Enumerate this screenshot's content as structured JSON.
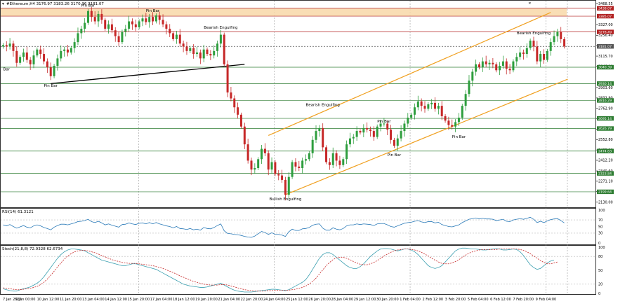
{
  "window": {
    "main_title": "#Ethereum,H4  3176.97 3183.26 3170.36 3181.07",
    "rsi_title": "RSI(14) 61.3121",
    "stoch_title": "Stoch(21,8,8) 72.9328 62.6734",
    "close_glyph": "×"
  },
  "chart_data": [
    {
      "type": "candlestick",
      "symbol": "#Ethereum",
      "timeframe": "H4",
      "ohlc_header": {
        "open": 3176.97,
        "high": 3183.26,
        "low": 3170.36,
        "close": 3181.07
      },
      "ylim": [
        2100,
        3480
      ],
      "y_ticks": [
        "3468.55",
        "3327.00",
        "3256.40",
        "3185.80",
        "3115.70",
        "3046.10",
        "2903.60",
        "2832.90",
        "2762.90",
        "2692.00",
        "2621.80",
        "2552.80",
        "2482.10",
        "2412.20",
        "2340.60",
        "2271.10",
        "2200.80",
        "2130.00"
      ],
      "x_ticks": [
        "7 Jan 2022",
        "9 Jan 00:00",
        "10 Jan 12:00",
        "11 Jan 20:00",
        "13 Jan 04:00",
        "14 Jan 12:00",
        "15 Jan 20:00",
        "17 Jan 04:00",
        "18 Jan 12:00",
        "19 Jan 20:00",
        "21 Jan 04:00",
        "22 Jan 20:00",
        "24 Jan 04:00",
        "25 Jan 12:00",
        "26 Jan 20:00",
        "28 Jan 04:00",
        "29 Jan 12:00",
        "30 Jan 20:00",
        "1 Feb 04:00",
        "2 Feb 12:00",
        "3 Feb 20:00",
        "5 Feb 04:00",
        "6 Feb 12:00",
        "7 Feb 20:00",
        "9 Feb 04:00"
      ],
      "levels": [
        {
          "value": 3438.07,
          "label": "3438.07",
          "color": "#b22222"
        },
        {
          "value": 3385.07,
          "label": "3385.07",
          "color": "#b22222"
        },
        {
          "value": 3278.49,
          "label": "3278.49",
          "color": "#b22222"
        },
        {
          "value": 3181.07,
          "label": "3181.07",
          "color": "#555555"
        },
        {
          "value": 3040.39,
          "label": "3040.39",
          "color": "#2e7d32"
        },
        {
          "value": 2930.14,
          "label": "2930.14",
          "color": "#2e7d32"
        },
        {
          "value": 2816.29,
          "label": "2816.29",
          "color": "#2e7d32"
        },
        {
          "value": 2695.14,
          "label": "2695.14",
          "color": "#2e7d32"
        },
        {
          "value": 2626.79,
          "label": "2626.79",
          "color": "#2e7d32"
        },
        {
          "value": 2474.63,
          "label": "2474.63",
          "color": "#2e7d32"
        },
        {
          "value": 2323.84,
          "label": "2323.84",
          "color": "#2e7d32"
        },
        {
          "value": 2199.64,
          "label": "2199.64",
          "color": "#2e7d32"
        }
      ],
      "resistance_zone": [
        3385,
        3438
      ],
      "trendlines": [
        {
          "kind": "support",
          "color": "#000000",
          "from": {
            "bar": 14,
            "price": 2930
          },
          "to": {
            "bar": 71,
            "price": 3060
          }
        },
        {
          "kind": "channel-upper",
          "color": "#f0a020",
          "from": {
            "bar": 78,
            "price": 2580
          },
          "to": {
            "bar": 161,
            "price": 3410
          }
        },
        {
          "kind": "channel-lower",
          "color": "#f0a020",
          "from": {
            "bar": 83,
            "price": 2180
          },
          "to": {
            "bar": 166,
            "price": 2960
          }
        }
      ],
      "annotations": [
        {
          "text": "Pin Bar",
          "bar": 25,
          "price": 3450
        },
        {
          "text": "Pin Bar",
          "bar": 44,
          "price": 3415
        },
        {
          "text": "Bearish Engulfing",
          "bar": 64,
          "price": 3300
        },
        {
          "text": "Bar",
          "bar": 1,
          "price": 3020
        },
        {
          "text": "Pin Bar",
          "bar": 14,
          "price": 2908
        },
        {
          "text": "Bearish Engulfing",
          "bar": 94,
          "price": 2778
        },
        {
          "text": "Pin Bar",
          "bar": 112,
          "price": 2666
        },
        {
          "text": "Pin Bar",
          "bar": 115,
          "price": 2440
        },
        {
          "text": "Pin Bar",
          "bar": 134,
          "price": 2564
        },
        {
          "text": "Bearish Engulfing",
          "bar": 156,
          "price": 3262
        },
        {
          "text": "Bullish Engulfing",
          "bar": 83,
          "price": 2143
        }
      ],
      "closes": [
        3190,
        3180,
        3200,
        3150,
        3070,
        3110,
        3140,
        3090,
        3060,
        3120,
        3160,
        3130,
        3080,
        3040,
        2980,
        3050,
        3100,
        3150,
        3160,
        3140,
        3170,
        3210,
        3270,
        3300,
        3340,
        3420,
        3380,
        3350,
        3400,
        3360,
        3300,
        3330,
        3290,
        3250,
        3210,
        3280,
        3300,
        3350,
        3330,
        3310,
        3350,
        3370,
        3345,
        3380,
        3350,
        3390,
        3360,
        3330,
        3300,
        3270,
        3230,
        3260,
        3200,
        3180,
        3150,
        3170,
        3130,
        3140,
        3100,
        3160,
        3130,
        3120,
        3150,
        3200,
        3260,
        3060,
        2870,
        2830,
        2770,
        2720,
        2640,
        2520,
        2410,
        2350,
        2360,
        2420,
        2490,
        2460,
        2350,
        2400,
        2320,
        2310,
        2280,
        2180,
        2300,
        2400,
        2370,
        2360,
        2410,
        2420,
        2460,
        2550,
        2610,
        2630,
        2500,
        2400,
        2380,
        2460,
        2410,
        2380,
        2420,
        2520,
        2560,
        2570,
        2610,
        2600,
        2630,
        2620,
        2610,
        2570,
        2640,
        2660,
        2660,
        2620,
        2550,
        2510,
        2560,
        2610,
        2660,
        2700,
        2720,
        2770,
        2810,
        2780,
        2760,
        2790,
        2800,
        2760,
        2780,
        2710,
        2680,
        2650,
        2640,
        2670,
        2700,
        2780,
        2860,
        2950,
        3010,
        3060,
        3040,
        3080,
        3060,
        3070,
        3060,
        3020,
        3050,
        3080,
        3030,
        3020,
        3080,
        3110,
        3140,
        3130,
        3170,
        3220,
        3180,
        3080,
        3130,
        3090,
        3150,
        3210,
        3250,
        3280,
        3230,
        3181
      ]
    },
    {
      "type": "line",
      "name": "RSI(14)",
      "ylim": [
        0,
        100
      ],
      "y_ticks": [
        "100",
        "70",
        "50",
        "30",
        "0"
      ],
      "values": [
        55,
        52,
        56,
        50,
        45,
        49,
        53,
        48,
        46,
        52,
        55,
        52,
        47,
        44,
        40,
        48,
        53,
        57,
        57,
        55,
        58,
        61,
        65,
        66,
        68,
        72,
        65,
        62,
        66,
        61,
        55,
        58,
        54,
        51,
        48,
        56,
        57,
        61,
        58,
        56,
        60,
        61,
        58,
        62,
        58,
        62,
        58,
        55,
        52,
        50,
        46,
        50,
        44,
        43,
        41,
        44,
        40,
        42,
        39,
        47,
        44,
        43,
        47,
        53,
        58,
        37,
        29,
        28,
        26,
        25,
        23,
        20,
        18,
        17,
        21,
        28,
        35,
        32,
        26,
        31,
        26,
        26,
        24,
        20,
        34,
        42,
        38,
        38,
        43,
        44,
        47,
        54,
        57,
        58,
        45,
        39,
        39,
        46,
        42,
        40,
        44,
        52,
        55,
        55,
        58,
        56,
        58,
        57,
        56,
        53,
        58,
        59,
        59,
        55,
        50,
        48,
        52,
        56,
        60,
        62,
        63,
        66,
        68,
        64,
        62,
        65,
        65,
        61,
        63,
        56,
        53,
        50,
        49,
        52,
        55,
        62,
        67,
        72,
        74,
        76,
        73,
        75,
        73,
        73,
        72,
        68,
        70,
        72,
        66,
        65,
        70,
        72,
        74,
        72,
        75,
        78,
        72,
        62,
        66,
        62,
        67,
        71,
        73,
        74,
        68,
        61
      ]
    },
    {
      "type": "line",
      "name": "Stoch(21,8,8)",
      "ylim": [
        0,
        100
      ],
      "y_ticks": [
        "100",
        "80",
        "50",
        "20",
        "0"
      ],
      "main": [
        10,
        8,
        6,
        5,
        5,
        8,
        10,
        12,
        14,
        18,
        22,
        28,
        36,
        46,
        56,
        66,
        76,
        84,
        90,
        94,
        96,
        96,
        95,
        94,
        92,
        88,
        84,
        80,
        76,
        72,
        70,
        68,
        66,
        64,
        62,
        60,
        60,
        62,
        64,
        64,
        62,
        60,
        58,
        56,
        54,
        52,
        48,
        44,
        40,
        36,
        32,
        28,
        24,
        20,
        18,
        16,
        15,
        14,
        13,
        13,
        14,
        16,
        18,
        20,
        22,
        18,
        14,
        10,
        7,
        5,
        4,
        3,
        3,
        3,
        4,
        5,
        6,
        7,
        8,
        9,
        9,
        8,
        7,
        6,
        8,
        12,
        16,
        20,
        24,
        30,
        40,
        52,
        64,
        76,
        84,
        88,
        88,
        84,
        78,
        72,
        66,
        60,
        56,
        54,
        54,
        58,
        64,
        72,
        80,
        86,
        92,
        96,
        97,
        97,
        96,
        94,
        92,
        94,
        96,
        96,
        94,
        90,
        84,
        76,
        68,
        60,
        56,
        54,
        56,
        60,
        68,
        76,
        84,
        92,
        96,
        98,
        98,
        97,
        96,
        96,
        95,
        94,
        94,
        95,
        96,
        97,
        96,
        94,
        94,
        95,
        96,
        95,
        90,
        82,
        72,
        62,
        56,
        52,
        54,
        60,
        66,
        70,
        72
      ],
      "signal": [
        12,
        11,
        10,
        9,
        8,
        8,
        9,
        10,
        11,
        13,
        15,
        19,
        24,
        31,
        39,
        48,
        57,
        66,
        74,
        81,
        86,
        90,
        92,
        93,
        93,
        92,
        90,
        88,
        85,
        82,
        79,
        76,
        73,
        71,
        69,
        67,
        66,
        65,
        65,
        65,
        64,
        63,
        62,
        61,
        60,
        58,
        56,
        54,
        51,
        48,
        45,
        42,
        38,
        35,
        32,
        29,
        26,
        24,
        22,
        20,
        19,
        18,
        18,
        18,
        19,
        19,
        18,
        16,
        14,
        12,
        10,
        8,
        7,
        6,
        5,
        5,
        5,
        5,
        6,
        6,
        7,
        7,
        7,
        7,
        7,
        8,
        9,
        11,
        13,
        16,
        20,
        26,
        33,
        42,
        51,
        60,
        67,
        73,
        77,
        78,
        78,
        76,
        73,
        69,
        66,
        63,
        62,
        62,
        64,
        67,
        71,
        76,
        81,
        85,
        89,
        92,
        94,
        95,
        96,
        96,
        95,
        94,
        92,
        89,
        85,
        81,
        76,
        72,
        68,
        65,
        64,
        64,
        66,
        69,
        73,
        78,
        83,
        87,
        90,
        92,
        94,
        95,
        95,
        95,
        95,
        95,
        96,
        96,
        96,
        96,
        96,
        96,
        95,
        93,
        90,
        86,
        81,
        76,
        71,
        67,
        64,
        64,
        66,
        68
      ]
    }
  ],
  "colors": {
    "bull": "#2e9e3e",
    "bear": "#c62828",
    "rsi": "#2a7ab8",
    "stoch_main": "#3b9fb0",
    "stoch_signal": "#c62828",
    "zone": "#f8d8a8",
    "grid": "#9a9a9a"
  }
}
